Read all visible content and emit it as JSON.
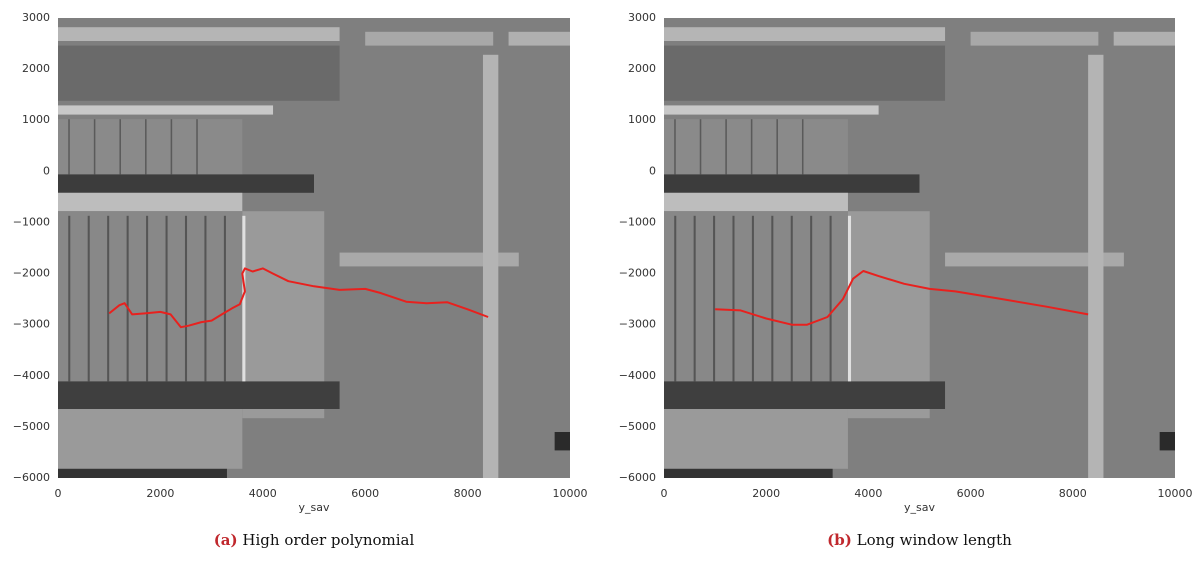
{
  "chart_data": [
    {
      "type": "line",
      "caption_label": "(a)",
      "caption": "High order polynomial",
      "xlabel": "y_sav",
      "xlim": [
        0,
        10000
      ],
      "ylim": [
        -6000,
        3000
      ],
      "xticks": [
        0,
        2000,
        4000,
        6000,
        8000,
        10000
      ],
      "yticks": [
        3000,
        2000,
        1000,
        0,
        {
          "value": -1000,
          "label": "−1000"
        },
        {
          "value": -2000,
          "label": "−2000"
        },
        {
          "value": -3000,
          "label": "−3000"
        },
        {
          "value": -4000,
          "label": "−4000"
        },
        {
          "value": -5000,
          "label": "−5000"
        },
        {
          "value": -6000,
          "label": "−6000"
        }
      ],
      "color": "#e8211e",
      "x": [
        1000,
        1200,
        1300,
        1450,
        1700,
        2000,
        2200,
        2400,
        2550,
        2800,
        3000,
        3200,
        3400,
        3550,
        3650,
        3600,
        3650,
        3800,
        4000,
        4200,
        4500,
        5000,
        5500,
        6000,
        6300,
        6800,
        7200,
        7600,
        8000,
        8400
      ],
      "values": [
        -2780,
        -2620,
        -2580,
        -2800,
        -2780,
        -2750,
        -2800,
        -3050,
        -3020,
        -2950,
        -2920,
        -2800,
        -2680,
        -2600,
        -2350,
        -2000,
        -1900,
        -1960,
        -1900,
        -2000,
        -2150,
        -2250,
        -2320,
        -2300,
        -2380,
        -2550,
        -2580,
        -2560,
        -2700,
        -2850
      ]
    },
    {
      "type": "line",
      "caption_label": "(b)",
      "caption": "Long window length",
      "xlabel": "y_sav",
      "xlim": [
        0,
        10000
      ],
      "ylim": [
        -6000,
        3000
      ],
      "xticks": [
        0,
        2000,
        4000,
        6000,
        8000,
        10000
      ],
      "yticks": [
        3000,
        2000,
        1000,
        0,
        {
          "value": -1000,
          "label": "−1000"
        },
        {
          "value": -2000,
          "label": "−2000"
        },
        {
          "value": -3000,
          "label": "−3000"
        },
        {
          "value": -4000,
          "label": "−4000"
        },
        {
          "value": -5000,
          "label": "−5000"
        },
        {
          "value": -6000,
          "label": "−6000"
        }
      ],
      "color": "#e8211e",
      "x": [
        1000,
        1500,
        2000,
        2500,
        2800,
        3200,
        3500,
        3700,
        3900,
        4200,
        4700,
        5200,
        5700,
        6500,
        7500,
        8300
      ],
      "values": [
        -2700,
        -2720,
        -2880,
        -3000,
        -3000,
        -2850,
        -2500,
        -2100,
        -1950,
        -2050,
        -2200,
        -2300,
        -2350,
        -2480,
        -2650,
        -2800
      ]
    }
  ]
}
